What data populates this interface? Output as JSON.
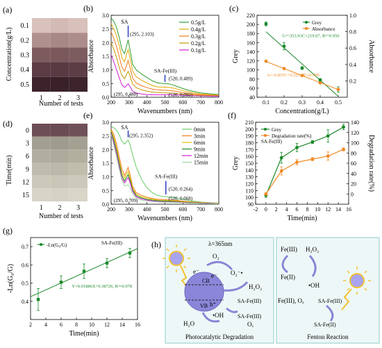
{
  "panels": {
    "a": {
      "label": "(a)",
      "ylabel": "Concentration(g/L)",
      "xlabel": "Number of tests",
      "rows": [
        "0.1",
        "0.2",
        "0.3",
        "0.4",
        "0.5"
      ],
      "cols": [
        "1",
        "2",
        "3"
      ],
      "colors": [
        [
          "#d9c1bd",
          "#d4bab5",
          "#d8c0bb"
        ],
        [
          "#b0908e",
          "#a88886",
          "#ad8d8b"
        ],
        [
          "#7d5a5e",
          "#7a585c",
          "#7d5c60"
        ],
        [
          "#5c3b44",
          "#593a43",
          "#5c3d46"
        ],
        [
          "#3b222b",
          "#3a2129",
          "#3c232c"
        ]
      ]
    },
    "d": {
      "label": "(d)",
      "ylabel": "Time(min)",
      "xlabel": "Number of tests",
      "rows": [
        "0",
        "3",
        "6",
        "9",
        "12",
        "15"
      ],
      "cols": [
        "1",
        "2",
        "3"
      ],
      "colors": [
        [
          "#6e4e56",
          "#6a4b53",
          "#6f5058"
        ],
        [
          "#a39f90",
          "#a09c8d",
          "#a5a192"
        ],
        [
          "#b2ae9f",
          "#afab9c",
          "#b3af9f"
        ],
        [
          "#bfbcad",
          "#bcb9aa",
          "#c0bdad"
        ],
        [
          "#ccc9ba",
          "#cac7b8",
          "#cdcabb"
        ],
        [
          "#d8d5c7",
          "#d6d3c5",
          "#d9d6c8"
        ]
      ]
    },
    "h": {
      "label": "(h)",
      "lambda": "λ=365nm",
      "e1": "e⁻",
      "e2": "e⁻",
      "o2": "O₂",
      "o2rad": "O₂⁻•",
      "cb": "CB",
      "vb": "VB",
      "h": "h⁺",
      "h2o2": "H₂O₂",
      "safe3a": "SA-Fe(III)",
      "oh": "•OH",
      "h2o": "H₂O",
      "safe3b": "SA-Fe(III)",
      "ox": "Oₓ",
      "left_title": "Photocatalytic Degradation",
      "fe3": "Fe(III)",
      "h2o2b": "H₂O₂",
      "fe2": "Fe(II)",
      "ohb": "•OH",
      "fe3ox": "Fe(III), Oₓ",
      "safe3c": "SA-Fe(III)",
      "safe2": "SA-Fe(II)",
      "right_title": "Fenton Reaction"
    }
  },
  "chart_data": [
    {
      "id": "b",
      "label": "(b)",
      "type": "line",
      "xlabel": "Wavenumbers (nm)",
      "ylabel": "Absorbance",
      "xlim": [
        200,
        800
      ],
      "ylim": [
        0,
        3.0
      ],
      "xticks": [
        200,
        300,
        400,
        500,
        600,
        700,
        800
      ],
      "yticks": [
        0.0,
        0.5,
        1.0,
        1.5,
        2.0,
        2.5,
        3.0
      ],
      "legend_position": "top-right",
      "annotations": [
        "SA",
        "(295, 2.103)",
        "SA-Fe(III)",
        "(520, 0.489)",
        "(520, 0.093)",
        "(295, 0.488)"
      ],
      "series": [
        {
          "name": "0.5g/L",
          "color": "#2e9e2e",
          "x": [
            200,
            215,
            230,
            245,
            260,
            275,
            285,
            295,
            305,
            320,
            340,
            370,
            400,
            430,
            460,
            490,
            520,
            550,
            590,
            640,
            700,
            760,
            800
          ],
          "y": [
            2.9,
            2.78,
            2.55,
            2.2,
            1.75,
            1.6,
            1.85,
            2.1,
            1.75,
            1.2,
            1.0,
            0.85,
            0.72,
            0.6,
            0.52,
            0.5,
            0.49,
            0.44,
            0.34,
            0.24,
            0.16,
            0.12,
            0.1
          ]
        },
        {
          "name": "0.4g/L",
          "color": "#e0a800",
          "x": [
            200,
            215,
            230,
            245,
            260,
            275,
            285,
            295,
            305,
            320,
            340,
            370,
            400,
            430,
            460,
            490,
            520,
            550,
            590,
            640,
            700,
            760,
            800
          ],
          "y": [
            2.7,
            2.5,
            2.25,
            1.9,
            1.45,
            1.3,
            1.55,
            1.75,
            1.45,
            0.95,
            0.75,
            0.62,
            0.52,
            0.43,
            0.38,
            0.37,
            0.36,
            0.33,
            0.26,
            0.18,
            0.12,
            0.09,
            0.08
          ]
        },
        {
          "name": "0.3g/L",
          "color": "#f07a1a",
          "x": [
            200,
            215,
            230,
            245,
            260,
            275,
            285,
            295,
            305,
            320,
            340,
            370,
            400,
            430,
            460,
            490,
            520,
            550,
            590,
            640,
            700,
            760,
            800
          ],
          "y": [
            2.4,
            2.15,
            1.85,
            1.5,
            1.1,
            0.95,
            1.15,
            1.35,
            1.1,
            0.7,
            0.52,
            0.42,
            0.35,
            0.3,
            0.27,
            0.26,
            0.25,
            0.23,
            0.18,
            0.13,
            0.09,
            0.07,
            0.06
          ]
        },
        {
          "name": "0.2g/L",
          "color": "#c49a00",
          "x": [
            200,
            215,
            230,
            245,
            260,
            275,
            285,
            295,
            305,
            320,
            340,
            370,
            400,
            430,
            460,
            490,
            520,
            550,
            590,
            640,
            700,
            760,
            800
          ],
          "y": [
            2.0,
            1.75,
            1.45,
            1.1,
            0.8,
            0.68,
            0.82,
            0.95,
            0.78,
            0.48,
            0.35,
            0.27,
            0.22,
            0.19,
            0.17,
            0.16,
            0.16,
            0.15,
            0.12,
            0.09,
            0.07,
            0.05,
            0.05
          ]
        },
        {
          "name": "0.1g/L",
          "color": "#d21fd2",
          "x": [
            200,
            215,
            230,
            245,
            260,
            275,
            285,
            295,
            305,
            320,
            340,
            370,
            400,
            430,
            460,
            490,
            520,
            550,
            590,
            640,
            700,
            760,
            800
          ],
          "y": [
            1.55,
            1.3,
            1.0,
            0.72,
            0.45,
            0.36,
            0.42,
            0.49,
            0.4,
            0.22,
            0.15,
            0.12,
            0.1,
            0.09,
            0.09,
            0.09,
            0.093,
            0.09,
            0.08,
            0.06,
            0.05,
            0.04,
            0.04
          ]
        }
      ]
    },
    {
      "id": "c",
      "label": "(c)",
      "type": "scatter",
      "xlabel": "Concentration(g/L)",
      "ylabel": "Grey",
      "y2label": "Absorbance",
      "xlim": [
        0.05,
        0.55
      ],
      "ylim": [
        40,
        220
      ],
      "y2lim": [
        0.0,
        1.0
      ],
      "xticks": [
        0.1,
        0.2,
        0.3,
        0.4,
        0.5
      ],
      "yticks": [
        40,
        60,
        80,
        100,
        120,
        140,
        160,
        180,
        200,
        220
      ],
      "y2ticks": [
        0.2,
        0.4,
        0.6,
        0.8,
        1.0
      ],
      "legend_position": "top-right",
      "annotations": [
        "G=-353.93C+219.07, R²=0.950",
        "A=-0.855C+0.521, R²=0.999"
      ],
      "series": [
        {
          "name": "Grey",
          "color": "#1a8a2a",
          "axis": "left",
          "x": [
            0.1,
            0.2,
            0.3,
            0.4,
            0.5
          ],
          "y": [
            201,
            152,
            104,
            78,
            57
          ],
          "err": [
            4,
            8,
            3,
            3,
            6
          ],
          "fit": [
            [
              0.1,
              183.7
            ],
            [
              0.5,
              42.1
            ]
          ]
        },
        {
          "name": "Absorbance",
          "color": "#f08a24",
          "axis": "right",
          "x": [
            0.1,
            0.2,
            0.3,
            0.4,
            0.5
          ],
          "y": [
            0.44,
            0.35,
            0.265,
            0.175,
            0.095
          ],
          "fit": [
            [
              0.1,
              0.4355
            ],
            [
              0.5,
              0.0935
            ]
          ]
        }
      ]
    },
    {
      "id": "e",
      "label": "(e)",
      "type": "line",
      "xlabel": "Wavenumbers (nm)",
      "ylabel": "Absorbance",
      "xlim": [
        200,
        800
      ],
      "ylim": [
        0,
        3.0
      ],
      "xticks": [
        200,
        300,
        400,
        500,
        600,
        700,
        800
      ],
      "yticks": [
        0.0,
        0.5,
        1.0,
        1.5,
        2.0,
        2.5,
        3.0
      ],
      "legend_position": "top-right",
      "annotations": [
        "SA",
        "(295, 2.352)",
        "SA-Fe(III)",
        "(520, 0.264)",
        "(520, 0.068)",
        "(295, 0.709)"
      ],
      "series": [
        {
          "name": "0min",
          "color": "#66cc66",
          "x": [
            200,
            215,
            230,
            245,
            260,
            275,
            285,
            295,
            305,
            320,
            340,
            370,
            400,
            430,
            460,
            490,
            520,
            550,
            590,
            640,
            700,
            760,
            800
          ],
          "y": [
            2.85,
            2.8,
            2.7,
            2.55,
            2.3,
            2.2,
            2.28,
            2.35,
            2.2,
            1.8,
            1.35,
            0.9,
            0.6,
            0.42,
            0.32,
            0.28,
            0.264,
            0.24,
            0.19,
            0.13,
            0.08,
            0.05,
            0.04
          ]
        },
        {
          "name": "3min",
          "color": "#f07a1a",
          "x": [
            200,
            215,
            230,
            245,
            260,
            275,
            285,
            295,
            305,
            320,
            340,
            370,
            400,
            430,
            460,
            490,
            520,
            550,
            590,
            640,
            700,
            760,
            800
          ],
          "y": [
            2.75,
            2.55,
            2.2,
            1.75,
            1.3,
            1.05,
            1.2,
            1.35,
            1.1,
            0.65,
            0.42,
            0.32,
            0.26,
            0.21,
            0.18,
            0.17,
            0.16,
            0.15,
            0.12,
            0.09,
            0.06,
            0.04,
            0.03
          ]
        },
        {
          "name": "6min",
          "color": "#e0c000",
          "x": [
            200,
            215,
            230,
            245,
            260,
            275,
            285,
            295,
            305,
            320,
            340,
            370,
            400,
            430,
            460,
            490,
            520,
            550,
            590,
            640,
            700,
            760,
            800
          ],
          "y": [
            2.7,
            2.45,
            2.05,
            1.6,
            1.15,
            0.95,
            1.08,
            1.2,
            0.98,
            0.58,
            0.36,
            0.27,
            0.22,
            0.18,
            0.15,
            0.14,
            0.13,
            0.12,
            0.1,
            0.07,
            0.05,
            0.03,
            0.03
          ]
        },
        {
          "name": "9min",
          "color": "#228b22",
          "x": [
            200,
            215,
            230,
            245,
            260,
            275,
            285,
            295,
            305,
            320,
            340,
            370,
            400,
            430,
            460,
            490,
            520,
            550,
            590,
            640,
            700,
            760,
            800
          ],
          "y": [
            2.65,
            2.35,
            1.95,
            1.5,
            1.05,
            0.85,
            0.97,
            1.08,
            0.88,
            0.52,
            0.31,
            0.23,
            0.18,
            0.15,
            0.13,
            0.12,
            0.11,
            0.1,
            0.08,
            0.06,
            0.04,
            0.03,
            0.02
          ]
        },
        {
          "name": "12min",
          "color": "#d21fd2",
          "x": [
            200,
            215,
            230,
            245,
            260,
            275,
            285,
            295,
            305,
            320,
            340,
            370,
            400,
            430,
            460,
            490,
            520,
            550,
            590,
            640,
            700,
            760,
            800
          ],
          "y": [
            2.6,
            2.25,
            1.85,
            1.4,
            0.95,
            0.78,
            0.88,
            0.97,
            0.8,
            0.47,
            0.27,
            0.19,
            0.15,
            0.12,
            0.1,
            0.09,
            0.085,
            0.08,
            0.07,
            0.05,
            0.04,
            0.03,
            0.02
          ]
        },
        {
          "name": "15min",
          "color": "#a0d8a0",
          "x": [
            200,
            215,
            230,
            245,
            260,
            275,
            285,
            295,
            305,
            320,
            340,
            370,
            400,
            430,
            460,
            490,
            520,
            550,
            590,
            640,
            700,
            760,
            800
          ],
          "y": [
            2.55,
            2.15,
            1.75,
            1.3,
            0.88,
            0.66,
            0.69,
            0.709,
            0.62,
            0.38,
            0.22,
            0.15,
            0.12,
            0.1,
            0.08,
            0.07,
            0.068,
            0.065,
            0.055,
            0.04,
            0.03,
            0.02,
            0.02
          ]
        }
      ]
    },
    {
      "id": "f",
      "label": "(f)",
      "type": "line",
      "xlabel": "Time(min)",
      "ylabel": "Grey",
      "y2label": "Degradation rate(%)",
      "subtitle": "SA-Fe(III)",
      "xlim": [
        -2,
        16
      ],
      "ylim": [
        90,
        210
      ],
      "y2lim": [
        -20,
        140
      ],
      "xticks": [
        -2,
        0,
        2,
        4,
        6,
        8,
        10,
        12,
        14,
        16
      ],
      "yticks": [
        90,
        100,
        110,
        120,
        130,
        140,
        150,
        160,
        170,
        180,
        190,
        200,
        210
      ],
      "y2ticks": [
        0,
        20,
        40,
        60,
        80,
        100,
        120,
        140
      ],
      "legend_position": "top-left",
      "series": [
        {
          "name": "Grey",
          "color": "#1a8a2a",
          "axis": "left",
          "x": [
            0,
            3,
            6,
            9,
            12,
            15
          ],
          "y": [
            103,
            158,
            173,
            181,
            190,
            203
          ],
          "err": [
            3,
            8,
            6,
            2,
            9,
            4
          ]
        },
        {
          "name": "Degradation rate(%)",
          "color": "#f08a24",
          "axis": "right",
          "x": [
            0,
            3,
            6,
            9,
            12,
            15
          ],
          "y": [
            0,
            45,
            62,
            68,
            74,
            87
          ],
          "err": [
            2,
            8,
            5,
            3,
            8,
            3
          ]
        }
      ]
    },
    {
      "id": "g",
      "label": "(g)",
      "type": "scatter",
      "xlabel": "Time(min)",
      "ylabel": "-Ln(G₀/G)",
      "subtitle": "SA-Fe(III)",
      "xlim": [
        2,
        16
      ],
      "ylim": [
        0.3,
        0.75
      ],
      "xticks": [
        2,
        4,
        6,
        8,
        10,
        12,
        14,
        16
      ],
      "yticks": [
        0.4,
        0.5,
        0.6,
        0.7
      ],
      "legend_position": "top-left",
      "annotations": [
        "Y=0.01886X+0.38726, R²=0.978"
      ],
      "series": [
        {
          "name": "-Ln(G₀/G)",
          "color": "#1a8a2a",
          "x": [
            3,
            6,
            9,
            12,
            15
          ],
          "y": [
            0.41,
            0.505,
            0.565,
            0.61,
            0.665
          ],
          "err": [
            0.06,
            0.035,
            0.04,
            0.025,
            0.025
          ],
          "fit": [
            [
              2,
              0.425
            ],
            [
              16,
              0.689
            ]
          ]
        }
      ]
    }
  ]
}
